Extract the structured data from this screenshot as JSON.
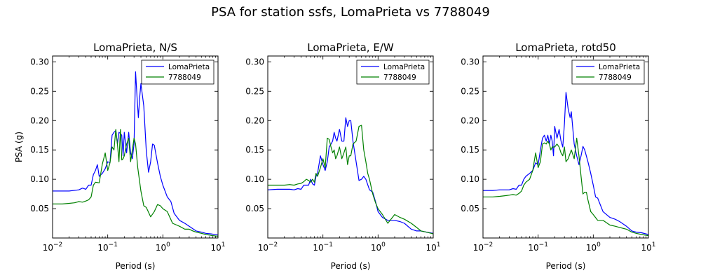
{
  "suptitle": "PSA for station ssfs, LomaPrieta vs 7788049",
  "chart_data": [
    {
      "type": "line",
      "title": "LomaPrieta, N/S",
      "xlabel": "Period (s)",
      "ylabel": "PSA (g)",
      "xscale": "log",
      "xlim": [
        0.01,
        10
      ],
      "ylim": [
        0,
        0.31
      ],
      "xticks": [
        0.01,
        0.1,
        1,
        10
      ],
      "yticks": [
        0.05,
        0.1,
        0.15,
        0.2,
        0.25,
        0.3
      ],
      "yticklabels": [
        "0.05",
        "0.10",
        "0.15",
        "0.20",
        "0.25",
        "0.30"
      ],
      "legend_position": "top-right",
      "series": [
        {
          "name": "LomaPrieta",
          "color": "#0000ff",
          "x": [
            0.01,
            0.02,
            0.03,
            0.035,
            0.04,
            0.045,
            0.05,
            0.055,
            0.06,
            0.065,
            0.07,
            0.08,
            0.09,
            0.1,
            0.11,
            0.12,
            0.13,
            0.14,
            0.15,
            0.16,
            0.17,
            0.18,
            0.19,
            0.2,
            0.22,
            0.24,
            0.26,
            0.28,
            0.3,
            0.32,
            0.34,
            0.36,
            0.38,
            0.4,
            0.45,
            0.5,
            0.55,
            0.6,
            0.65,
            0.7,
            0.8,
            0.9,
            1.0,
            1.2,
            1.4,
            1.6,
            2.0,
            2.5,
            3.0,
            4.0,
            5.0,
            6.0,
            7.5,
            10.0
          ],
          "y": [
            0.08,
            0.08,
            0.082,
            0.085,
            0.083,
            0.09,
            0.09,
            0.108,
            0.115,
            0.125,
            0.105,
            0.11,
            0.118,
            0.13,
            0.128,
            0.175,
            0.18,
            0.183,
            0.16,
            0.18,
            0.178,
            0.175,
            0.14,
            0.18,
            0.145,
            0.18,
            0.145,
            0.135,
            0.16,
            0.283,
            0.24,
            0.205,
            0.24,
            0.263,
            0.225,
            0.148,
            0.112,
            0.13,
            0.16,
            0.158,
            0.128,
            0.105,
            0.09,
            0.07,
            0.062,
            0.042,
            0.03,
            0.025,
            0.02,
            0.012,
            0.01,
            0.008,
            0.007,
            0.005
          ]
        },
        {
          "name": "7788049",
          "color": "#008000",
          "x": [
            0.01,
            0.015,
            0.02,
            0.025,
            0.03,
            0.035,
            0.04,
            0.045,
            0.05,
            0.055,
            0.06,
            0.07,
            0.08,
            0.09,
            0.1,
            0.11,
            0.12,
            0.13,
            0.14,
            0.15,
            0.16,
            0.17,
            0.18,
            0.19,
            0.2,
            0.22,
            0.24,
            0.26,
            0.28,
            0.3,
            0.32,
            0.35,
            0.4,
            0.45,
            0.5,
            0.6,
            0.7,
            0.8,
            0.9,
            1.0,
            1.2,
            1.5,
            2.0,
            2.5,
            3.0,
            3.5,
            4.0,
            5.0,
            6.0,
            7.0,
            8.0,
            10.0
          ],
          "y": [
            0.058,
            0.058,
            0.059,
            0.06,
            0.062,
            0.061,
            0.063,
            0.065,
            0.07,
            0.09,
            0.095,
            0.094,
            0.126,
            0.145,
            0.115,
            0.128,
            0.155,
            0.15,
            0.185,
            0.16,
            0.13,
            0.185,
            0.133,
            0.135,
            0.14,
            0.16,
            0.17,
            0.13,
            0.15,
            0.17,
            0.16,
            0.12,
            0.08,
            0.055,
            0.052,
            0.036,
            0.045,
            0.057,
            0.055,
            0.05,
            0.045,
            0.025,
            0.02,
            0.015,
            0.015,
            0.012,
            0.01,
            0.008,
            0.006,
            0.005,
            0.004,
            0.003
          ]
        }
      ]
    },
    {
      "type": "line",
      "title": "LomaPrieta, E/W",
      "xlabel": "Period (s)",
      "ylabel": "",
      "xscale": "log",
      "xlim": [
        0.01,
        10
      ],
      "ylim": [
        0,
        0.31
      ],
      "xticks": [
        0.01,
        0.1,
        1,
        10
      ],
      "yticks": [
        0.05,
        0.1,
        0.15,
        0.2,
        0.25,
        0.3
      ],
      "yticklabels": [
        "0.05",
        "0.10",
        "0.15",
        "0.20",
        "0.25",
        "0.30"
      ],
      "legend_position": "top-right",
      "series": [
        {
          "name": "LomaPrieta",
          "color": "#0000ff",
          "x": [
            0.01,
            0.015,
            0.02,
            0.025,
            0.03,
            0.035,
            0.04,
            0.045,
            0.05,
            0.055,
            0.06,
            0.065,
            0.07,
            0.075,
            0.08,
            0.09,
            0.1,
            0.11,
            0.12,
            0.13,
            0.14,
            0.15,
            0.16,
            0.17,
            0.18,
            0.2,
            0.22,
            0.24,
            0.26,
            0.28,
            0.3,
            0.32,
            0.35,
            0.4,
            0.45,
            0.5,
            0.55,
            0.6,
            0.7,
            0.8,
            0.9,
            1.0,
            1.2,
            1.5,
            2.0,
            2.5,
            3.0,
            4.0,
            5.0,
            6.0,
            7.5,
            10.0
          ],
          "y": [
            0.082,
            0.083,
            0.083,
            0.083,
            0.082,
            0.084,
            0.083,
            0.09,
            0.09,
            0.09,
            0.1,
            0.092,
            0.09,
            0.105,
            0.11,
            0.14,
            0.125,
            0.115,
            0.13,
            0.155,
            0.16,
            0.165,
            0.18,
            0.17,
            0.165,
            0.185,
            0.165,
            0.165,
            0.205,
            0.19,
            0.2,
            0.2,
            0.165,
            0.13,
            0.098,
            0.1,
            0.105,
            0.1,
            0.082,
            0.078,
            0.062,
            0.045,
            0.035,
            0.03,
            0.03,
            0.028,
            0.025,
            0.015,
            0.012,
            0.012,
            0.01,
            0.008
          ]
        },
        {
          "name": "7788049",
          "color": "#008000",
          "x": [
            0.01,
            0.015,
            0.02,
            0.025,
            0.03,
            0.035,
            0.04,
            0.045,
            0.05,
            0.055,
            0.06,
            0.065,
            0.07,
            0.075,
            0.08,
            0.09,
            0.1,
            0.11,
            0.12,
            0.13,
            0.14,
            0.15,
            0.16,
            0.17,
            0.18,
            0.2,
            0.22,
            0.24,
            0.26,
            0.28,
            0.3,
            0.32,
            0.35,
            0.4,
            0.45,
            0.5,
            0.55,
            0.6,
            0.65,
            0.7,
            0.8,
            0.9,
            1.0,
            1.2,
            1.5,
            2.0,
            2.5,
            3.0,
            4.0,
            5.0,
            6.0,
            7.5,
            10.0
          ],
          "y": [
            0.09,
            0.09,
            0.09,
            0.091,
            0.09,
            0.092,
            0.093,
            0.096,
            0.1,
            0.098,
            0.095,
            0.1,
            0.095,
            0.11,
            0.105,
            0.12,
            0.135,
            0.12,
            0.17,
            0.168,
            0.155,
            0.145,
            0.15,
            0.135,
            0.14,
            0.155,
            0.135,
            0.145,
            0.155,
            0.125,
            0.14,
            0.14,
            0.16,
            0.165,
            0.19,
            0.192,
            0.15,
            0.13,
            0.11,
            0.1,
            0.075,
            0.06,
            0.05,
            0.04,
            0.025,
            0.04,
            0.035,
            0.032,
            0.025,
            0.018,
            0.012,
            0.01,
            0.007
          ]
        }
      ]
    },
    {
      "type": "line",
      "title": "LomaPrieta, rotd50",
      "xlabel": "Period (s)",
      "ylabel": "",
      "xscale": "log",
      "xlim": [
        0.01,
        10
      ],
      "ylim": [
        0,
        0.31
      ],
      "xticks": [
        0.01,
        0.1,
        1,
        10
      ],
      "yticks": [
        0.05,
        0.1,
        0.15,
        0.2,
        0.25,
        0.3
      ],
      "yticklabels": [
        "0.05",
        "0.10",
        "0.15",
        "0.20",
        "0.25",
        "0.30"
      ],
      "legend_position": "top-right",
      "series": [
        {
          "name": "LomaPrieta",
          "color": "#0000ff",
          "x": [
            0.01,
            0.015,
            0.02,
            0.025,
            0.03,
            0.035,
            0.04,
            0.045,
            0.05,
            0.055,
            0.06,
            0.07,
            0.08,
            0.09,
            0.1,
            0.11,
            0.12,
            0.13,
            0.14,
            0.15,
            0.16,
            0.17,
            0.18,
            0.19,
            0.2,
            0.22,
            0.24,
            0.26,
            0.28,
            0.3,
            0.32,
            0.35,
            0.38,
            0.4,
            0.45,
            0.5,
            0.55,
            0.6,
            0.65,
            0.7,
            0.8,
            0.9,
            1.0,
            1.1,
            1.2,
            1.5,
            2.0,
            2.5,
            3.0,
            4.0,
            5.0,
            6.0,
            7.5,
            10.0
          ],
          "y": [
            0.081,
            0.081,
            0.082,
            0.082,
            0.082,
            0.084,
            0.083,
            0.09,
            0.09,
            0.1,
            0.105,
            0.11,
            0.115,
            0.128,
            0.125,
            0.15,
            0.17,
            0.175,
            0.165,
            0.175,
            0.16,
            0.175,
            0.165,
            0.14,
            0.19,
            0.17,
            0.185,
            0.165,
            0.155,
            0.195,
            0.248,
            0.22,
            0.205,
            0.215,
            0.16,
            0.14,
            0.125,
            0.14,
            0.156,
            0.15,
            0.13,
            0.11,
            0.09,
            0.07,
            0.068,
            0.045,
            0.035,
            0.032,
            0.028,
            0.02,
            0.012,
            0.01,
            0.009,
            0.006
          ]
        },
        {
          "name": "7788049",
          "color": "#008000",
          "x": [
            0.01,
            0.015,
            0.02,
            0.025,
            0.03,
            0.035,
            0.04,
            0.045,
            0.05,
            0.055,
            0.06,
            0.07,
            0.08,
            0.09,
            0.1,
            0.11,
            0.12,
            0.13,
            0.14,
            0.15,
            0.16,
            0.17,
            0.18,
            0.19,
            0.2,
            0.22,
            0.24,
            0.26,
            0.28,
            0.3,
            0.32,
            0.35,
            0.4,
            0.45,
            0.5,
            0.55,
            0.6,
            0.65,
            0.7,
            0.75,
            0.8,
            0.9,
            1.0,
            1.2,
            1.5,
            2.0,
            2.5,
            3.0,
            4.0,
            5.0,
            6.0,
            7.5,
            10.0
          ],
          "y": [
            0.07,
            0.07,
            0.071,
            0.072,
            0.073,
            0.074,
            0.073,
            0.076,
            0.08,
            0.09,
            0.095,
            0.1,
            0.115,
            0.145,
            0.12,
            0.13,
            0.16,
            0.162,
            0.16,
            0.165,
            0.16,
            0.15,
            0.155,
            0.155,
            0.155,
            0.16,
            0.155,
            0.145,
            0.14,
            0.155,
            0.13,
            0.135,
            0.15,
            0.135,
            0.17,
            0.14,
            0.105,
            0.075,
            0.078,
            0.078,
            0.065,
            0.045,
            0.04,
            0.03,
            0.03,
            0.022,
            0.02,
            0.018,
            0.015,
            0.01,
            0.008,
            0.006,
            0.004
          ]
        }
      ]
    }
  ]
}
